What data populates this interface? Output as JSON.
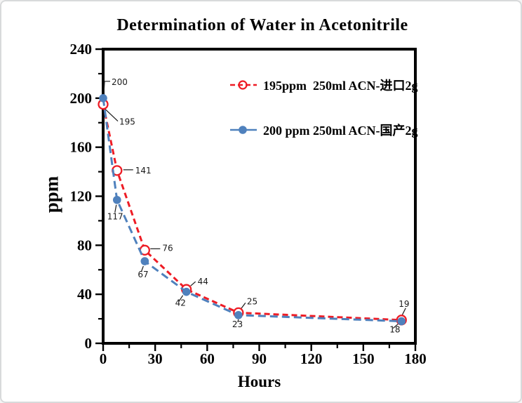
{
  "window": {
    "background": "#ffffff",
    "border_color": "#d8dadb"
  },
  "chart_data": {
    "type": "line",
    "title": "Determination of Water in Acetonitrile",
    "xlabel": "Hours",
    "ylabel": "ppm",
    "xlim": [
      0,
      180
    ],
    "ylim": [
      0,
      240
    ],
    "xticks": [
      0,
      30,
      60,
      90,
      120,
      150,
      180
    ],
    "xticks_minor": [
      15,
      45,
      75,
      105,
      135,
      165
    ],
    "yticks": [
      0,
      40,
      80,
      120,
      160,
      200,
      240
    ],
    "yticks_minor": [
      20,
      60,
      100,
      140,
      180,
      220
    ],
    "grid": false,
    "legend_position": "inside-top-right",
    "point_labels_shown": true,
    "x": [
      0,
      8,
      24,
      48,
      78,
      172
    ],
    "series": [
      {
        "name": "195ppm  250ml ACN-进口2g",
        "color": "#ee1c25",
        "marker": "open-circle",
        "line_style": "dashed",
        "values": [
          195,
          141,
          76,
          44,
          25,
          19
        ]
      },
      {
        "name": "200 ppm 250ml ACN-国产2g",
        "color": "#4f81bd",
        "marker": "filled-circle",
        "line_style": "dashed",
        "values": [
          200,
          117,
          67,
          42,
          23,
          18
        ]
      }
    ]
  }
}
